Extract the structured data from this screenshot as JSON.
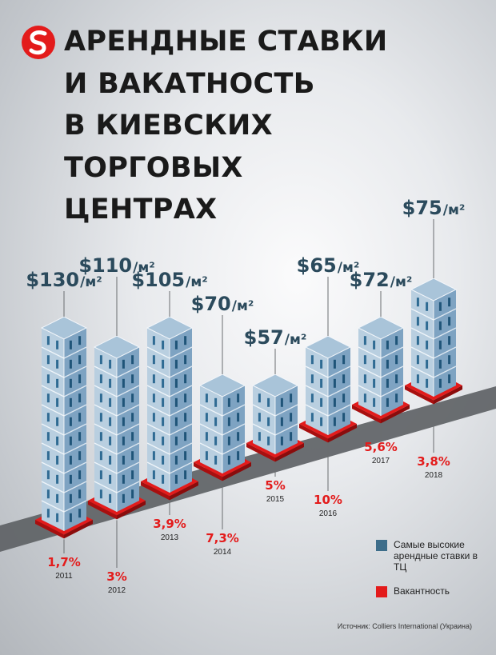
{
  "title_lines": [
    "АРЕНДНЫЕ СТАВКИ",
    "И ВАКАТНОСТЬ",
    "В КИЕВСКИХ",
    "ТОРГОВЫХ",
    "ЦЕНТРАХ"
  ],
  "legend": {
    "rent": "Самые высокие арендные ставки в ТЦ",
    "vacancy": "Вакантность"
  },
  "source": "Источник: Colliers International (Украина)",
  "colors": {
    "accent": "#e31b1b",
    "building": "#8fb2cf",
    "legend_rent": "#3d6d8a",
    "title": "#1a1a1a",
    "rent_label": "#2b4a5c"
  },
  "rent_unit": "/м²",
  "chart_data": {
    "type": "bar",
    "categories": [
      "2011",
      "2012",
      "2013",
      "2014",
      "2015",
      "2016",
      "2017",
      "2018"
    ],
    "series": [
      {
        "name": "Самые высокие арендные ставки в ТЦ",
        "values": [
          130,
          110,
          105,
          70,
          57,
          65,
          72,
          75
        ],
        "labels": [
          "$130",
          "$110",
          "$105",
          "$70",
          "$57",
          "$65",
          "$72",
          "$75"
        ]
      },
      {
        "name": "Вакантность",
        "values": [
          1.7,
          3,
          3.9,
          7.3,
          5,
          10,
          5.6,
          3.8
        ],
        "labels": [
          "1,7%",
          "3%",
          "3,9%",
          "7,3%",
          "5%",
          "10%",
          "5,6%",
          "3,8%"
        ]
      }
    ]
  }
}
